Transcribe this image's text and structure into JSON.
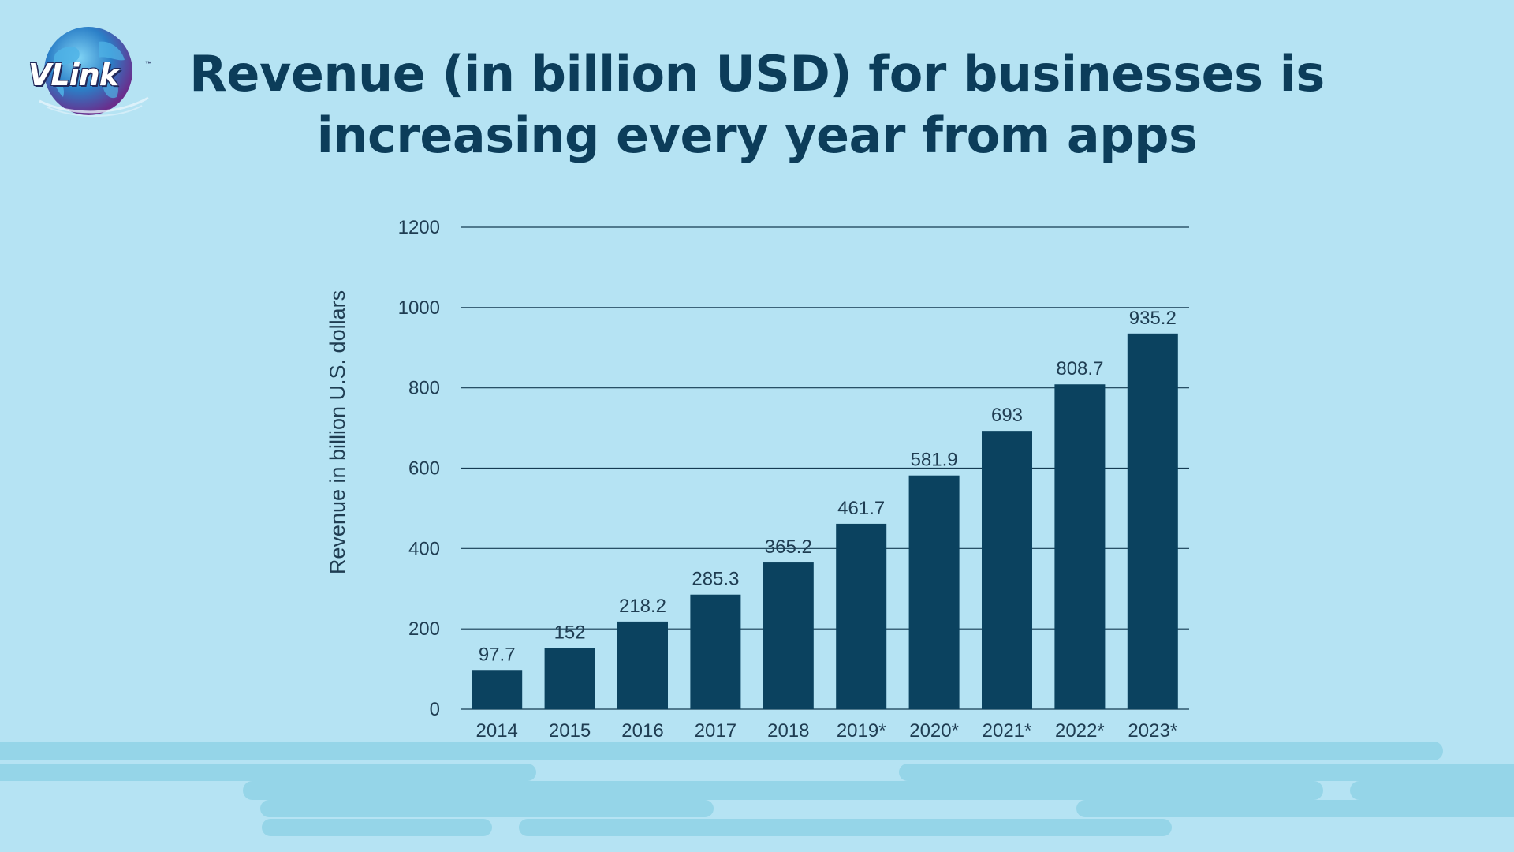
{
  "logo": {
    "text": "VLink",
    "tm": "™"
  },
  "title_line1": "Revenue (in billion USD) for businesses is",
  "title_line2": "increasing every year from apps",
  "colors": {
    "background": "#b5e3f3",
    "bar": "#0b425f",
    "title": "#0c3d5a",
    "grid": "#153b52",
    "footer_shape": "#95d5e8"
  },
  "chart_data": {
    "type": "bar",
    "categories": [
      "2014",
      "2015",
      "2016",
      "2017",
      "2018",
      "2019*",
      "2020*",
      "2021*",
      "2022*",
      "2023*"
    ],
    "values": [
      97.7,
      152,
      218.2,
      285.3,
      365.2,
      461.7,
      581.9,
      693,
      808.7,
      935.2
    ],
    "value_labels": [
      "97.7",
      "152",
      "218.2",
      "285.3",
      "365.2",
      "461.7",
      "581.9",
      "693",
      "808.7",
      "935.2"
    ],
    "title": "",
    "xlabel": "",
    "ylabel": "Revenue in billion U.S. dollars",
    "ylim": [
      0,
      1200
    ],
    "yticks": [
      0,
      200,
      400,
      600,
      800,
      1000,
      1200
    ],
    "grid": true,
    "legend": "none"
  }
}
